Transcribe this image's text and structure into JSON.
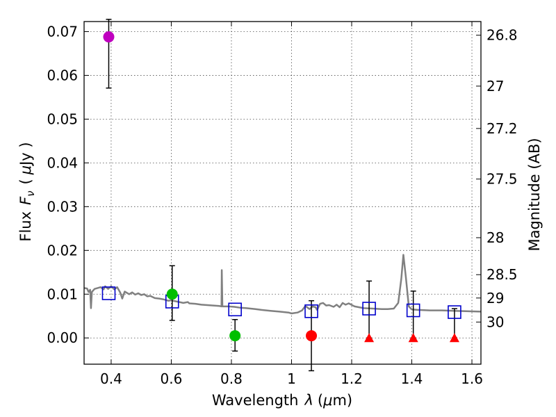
{
  "chart_data": {
    "type": "scatter",
    "xlabel": "Wavelength",
    "xlabel_symbol": "λ",
    "xlabel_unit_open": "(",
    "xlabel_unit_mu": "μ",
    "xlabel_unit_rest": "m)",
    "ylabel": "Flux",
    "ylabel_symbol": "F",
    "ylabel_subscript": "ν",
    "ylabel_unit_open": "(",
    "ylabel_unit_mu": "μ",
    "ylabel_unit_rest": "Jy )",
    "y2label": "Magnitude (AB)",
    "xlim": [
      0.31,
      1.63
    ],
    "ylim": [
      -0.006,
      0.0723
    ],
    "grid": true,
    "x_ticks": [
      {
        "value": 0.4,
        "label": "0.4"
      },
      {
        "value": 0.6,
        "label": "0.6"
      },
      {
        "value": 0.8,
        "label": "0.8"
      },
      {
        "value": 1.0,
        "label": "1"
      },
      {
        "value": 1.2,
        "label": "1.2"
      },
      {
        "value": 1.4,
        "label": "1.4"
      },
      {
        "value": 1.6,
        "label": "1.6"
      }
    ],
    "y_ticks": [
      {
        "value": 0.0,
        "label": "0.00"
      },
      {
        "value": 0.01,
        "label": "0.01"
      },
      {
        "value": 0.02,
        "label": "0.02"
      },
      {
        "value": 0.03,
        "label": "0.03"
      },
      {
        "value": 0.04,
        "label": "0.04"
      },
      {
        "value": 0.05,
        "label": "0.05"
      },
      {
        "value": 0.06,
        "label": "0.06"
      },
      {
        "value": 0.07,
        "label": "0.07"
      }
    ],
    "mag_ticks": [
      {
        "mag": 26.8,
        "label": "26.8"
      },
      {
        "mag": 27.0,
        "label": "27"
      },
      {
        "mag": 27.2,
        "label": "27.2"
      },
      {
        "mag": 27.5,
        "label": "27.5"
      },
      {
        "mag": 28.0,
        "label": "28"
      },
      {
        "mag": 28.5,
        "label": "28.5"
      },
      {
        "mag": 29.0,
        "label": "29"
      },
      {
        "mag": 30.0,
        "label": "30"
      }
    ],
    "colors": {
      "model": "#808080",
      "model_points": "#0000cc",
      "errorbar": "#000000",
      "purple": "#bf00bf",
      "green": "#00bf00",
      "red": "#ff0000"
    },
    "observed_points": [
      {
        "x": 0.392,
        "y": 0.0688,
        "err_lo": 0.0117,
        "err_hi": 0.004,
        "color": "purple"
      },
      {
        "x": 0.603,
        "y": 0.01,
        "err_lo": 0.006,
        "err_hi": 0.0065,
        "color": "green"
      },
      {
        "x": 0.812,
        "y": 0.0005,
        "err_lo": 0.0035,
        "err_hi": 0.0037,
        "color": "green"
      },
      {
        "x": 1.066,
        "y": 0.0005,
        "err_lo": 0.008,
        "err_hi": 0.008,
        "color": "red"
      }
    ],
    "upper_limits": [
      {
        "x": 1.258,
        "y": 0.0,
        "err_hi": 0.013
      },
      {
        "x": 1.405,
        "y": 0.0,
        "err_hi": 0.0107
      },
      {
        "x": 1.542,
        "y": 0.0,
        "err_hi": 0.0067
      }
    ],
    "model_points": [
      {
        "x": 0.392,
        "y": 0.0102
      },
      {
        "x": 0.603,
        "y": 0.0083
      },
      {
        "x": 0.812,
        "y": 0.0065
      },
      {
        "x": 1.066,
        "y": 0.0061
      },
      {
        "x": 1.258,
        "y": 0.0067
      },
      {
        "x": 1.405,
        "y": 0.0063
      },
      {
        "x": 1.542,
        "y": 0.0059
      }
    ],
    "model_spectrum": [
      [
        0.31,
        0.0114
      ],
      [
        0.32,
        0.0113
      ],
      [
        0.325,
        0.0105
      ],
      [
        0.33,
        0.011
      ],
      [
        0.333,
        0.0068
      ],
      [
        0.336,
        0.0105
      ],
      [
        0.345,
        0.0112
      ],
      [
        0.355,
        0.0114
      ],
      [
        0.365,
        0.0116
      ],
      [
        0.375,
        0.0111
      ],
      [
        0.38,
        0.0118
      ],
      [
        0.39,
        0.0112
      ],
      [
        0.4,
        0.0118
      ],
      [
        0.41,
        0.0111
      ],
      [
        0.42,
        0.0116
      ],
      [
        0.43,
        0.0104
      ],
      [
        0.437,
        0.009
      ],
      [
        0.445,
        0.0106
      ],
      [
        0.46,
        0.01
      ],
      [
        0.47,
        0.0104
      ],
      [
        0.48,
        0.0099
      ],
      [
        0.49,
        0.0102
      ],
      [
        0.5,
        0.0098
      ],
      [
        0.51,
        0.01
      ],
      [
        0.52,
        0.0095
      ],
      [
        0.53,
        0.0096
      ],
      [
        0.545,
        0.0091
      ],
      [
        0.56,
        0.009
      ],
      [
        0.575,
        0.0088
      ],
      [
        0.59,
        0.0085
      ],
      [
        0.6,
        0.0086
      ],
      [
        0.62,
        0.0083
      ],
      [
        0.64,
        0.008
      ],
      [
        0.655,
        0.0082
      ],
      [
        0.66,
        0.0079
      ],
      [
        0.68,
        0.0078
      ],
      [
        0.7,
        0.0076
      ],
      [
        0.72,
        0.0075
      ],
      [
        0.74,
        0.0074
      ],
      [
        0.76,
        0.0073
      ],
      [
        0.767,
        0.0072
      ],
      [
        0.768,
        0.0155
      ],
      [
        0.77,
        0.0072
      ],
      [
        0.79,
        0.0072
      ],
      [
        0.81,
        0.0071
      ],
      [
        0.83,
        0.0069
      ],
      [
        0.85,
        0.0068
      ],
      [
        0.88,
        0.0066
      ],
      [
        0.9,
        0.0064
      ],
      [
        0.93,
        0.0062
      ],
      [
        0.96,
        0.006
      ],
      [
        0.99,
        0.0058
      ],
      [
        1.0,
        0.0056
      ],
      [
        1.02,
        0.0058
      ],
      [
        1.035,
        0.0063
      ],
      [
        1.045,
        0.0072
      ],
      [
        1.05,
        0.0071
      ],
      [
        1.06,
        0.0066
      ],
      [
        1.07,
        0.0072
      ],
      [
        1.08,
        0.007
      ],
      [
        1.085,
        0.0064
      ],
      [
        1.095,
        0.0078
      ],
      [
        1.105,
        0.008
      ],
      [
        1.115,
        0.0074
      ],
      [
        1.125,
        0.0075
      ],
      [
        1.14,
        0.0071
      ],
      [
        1.15,
        0.0076
      ],
      [
        1.16,
        0.007
      ],
      [
        1.17,
        0.008
      ],
      [
        1.18,
        0.0076
      ],
      [
        1.19,
        0.0079
      ],
      [
        1.21,
        0.0072
      ],
      [
        1.24,
        0.0068
      ],
      [
        1.27,
        0.0067
      ],
      [
        1.3,
        0.0066
      ],
      [
        1.32,
        0.0066
      ],
      [
        1.34,
        0.0067
      ],
      [
        1.355,
        0.008
      ],
      [
        1.365,
        0.0135
      ],
      [
        1.372,
        0.019
      ],
      [
        1.38,
        0.014
      ],
      [
        1.39,
        0.0072
      ],
      [
        1.4,
        0.0065
      ],
      [
        1.42,
        0.0064
      ],
      [
        1.46,
        0.0063
      ],
      [
        1.5,
        0.0063
      ],
      [
        1.54,
        0.0062
      ],
      [
        1.58,
        0.0061
      ],
      [
        1.63,
        0.006
      ]
    ]
  }
}
